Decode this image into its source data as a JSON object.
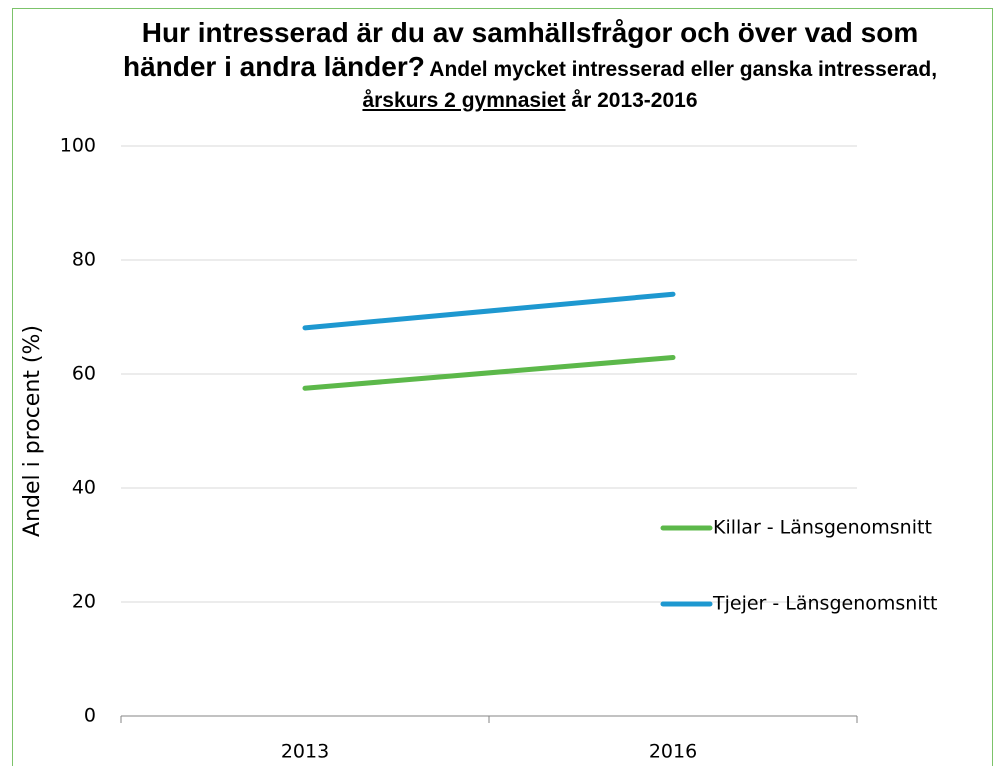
{
  "chart_data": {
    "type": "line",
    "title": "Hur intresserad är du av samhällsfrågor och över vad som händer i andra länder?",
    "subtitle": [
      "Andel mycket intresserad eller ganska intresserad,",
      "årskurs 2 gymnasiet",
      "år 2013-2016"
    ],
    "ylabel": "Andel i procent (%)",
    "categories": [
      "2013",
      "2016"
    ],
    "series": [
      {
        "name": "Killar - Länsgenomsnitt",
        "color": "#5cb84a",
        "values": [
          57.5,
          62.9
        ]
      },
      {
        "name": "Tjejer - Länsgenomsnitt",
        "color": "#1e98d0",
        "values": [
          68.1,
          74.0
        ]
      }
    ],
    "ylim": [
      0,
      100
    ],
    "yticks": [
      0,
      20,
      40,
      60,
      80,
      100
    ],
    "grid": true,
    "legend": "right"
  }
}
